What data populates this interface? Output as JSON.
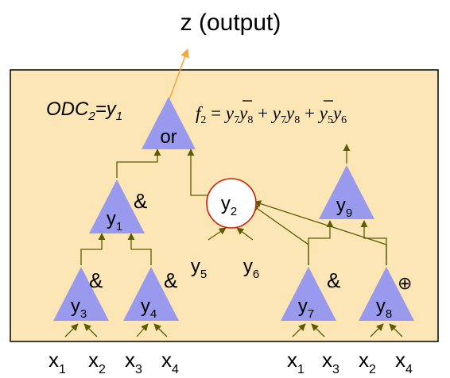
{
  "title": "z (output)",
  "odc_label": {
    "main": "ODC",
    "sub": "2",
    "eq": "=y",
    "var_sub": "1"
  },
  "formula": {
    "lhs": "f",
    "lhs_sub": "2",
    "eq": " = ",
    "terms": [
      {
        "a": "y",
        "a_sub": "7",
        "a_bar": true,
        "b": "y",
        "b_sub": "8",
        "b_bar": false
      },
      {
        "a": "y",
        "a_sub": "7",
        "a_bar": false,
        "b": "y",
        "b_sub": "8",
        "b_bar": true
      },
      {
        "a": "y",
        "a_sub": "5",
        "a_bar": false,
        "b": "y",
        "b_sub": "6",
        "b_bar": false
      }
    ],
    "plus": " + "
  },
  "gates": {
    "or": {
      "label": "or"
    },
    "y1": {
      "label": "y",
      "sub": "1",
      "op": "&"
    },
    "y2": {
      "label": "y",
      "sub": "2"
    },
    "y3": {
      "label": "y",
      "sub": "3",
      "op": "&"
    },
    "y4": {
      "label": "y",
      "sub": "4",
      "op": "&"
    },
    "y7": {
      "label": "y",
      "sub": "7",
      "op": "&"
    },
    "y8": {
      "label": "y",
      "sub": "8",
      "op": "⊕"
    },
    "y9": {
      "label": "y",
      "sub": "9"
    }
  },
  "y2_inputs": [
    {
      "label": "y",
      "sub": "5"
    },
    {
      "label": "y",
      "sub": "6"
    }
  ],
  "bottom_inputs": [
    {
      "label": "x",
      "sub": "1"
    },
    {
      "label": "x",
      "sub": "2"
    },
    {
      "label": "x",
      "sub": "3"
    },
    {
      "label": "x",
      "sub": "4"
    },
    {
      "label": "x",
      "sub": "1"
    },
    {
      "label": "x",
      "sub": "3"
    },
    {
      "label": "x",
      "sub": "2"
    },
    {
      "label": "x",
      "sub": "4"
    }
  ],
  "colors": {
    "panel_fill": "#fde6b6",
    "panel_border": "#000000",
    "gate_fill": "#9999ee",
    "wire": "#5c5c00",
    "output_arrow": "#f5a742",
    "circle_border": "#cc2200"
  }
}
